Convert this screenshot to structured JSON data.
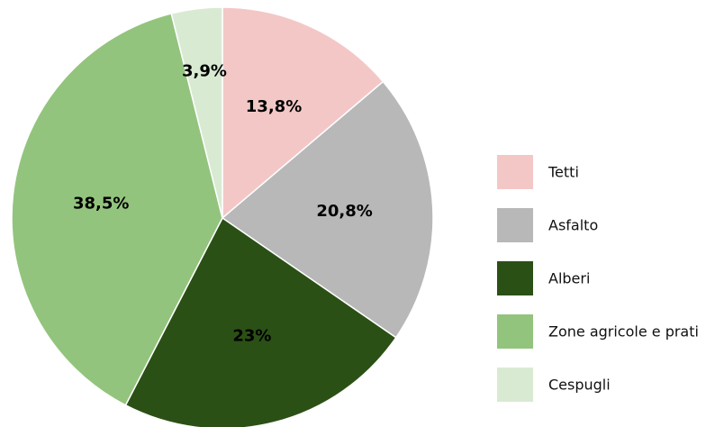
{
  "chart_data": {
    "type": "pie",
    "categories": [
      "Tetti",
      "Asfalto",
      "Alberi",
      "Zone agricole e prati",
      "Cespugli"
    ],
    "values": [
      13.8,
      20.8,
      23,
      38.5,
      3.9
    ],
    "value_labels": [
      "13,8%",
      "20,8%",
      "23%",
      "38,5%",
      "3,9%"
    ],
    "colors": [
      "#f4c7c7",
      "#b8b8b8",
      "#2b5015",
      "#93c47d",
      "#d9ead3"
    ],
    "legend": "right"
  }
}
